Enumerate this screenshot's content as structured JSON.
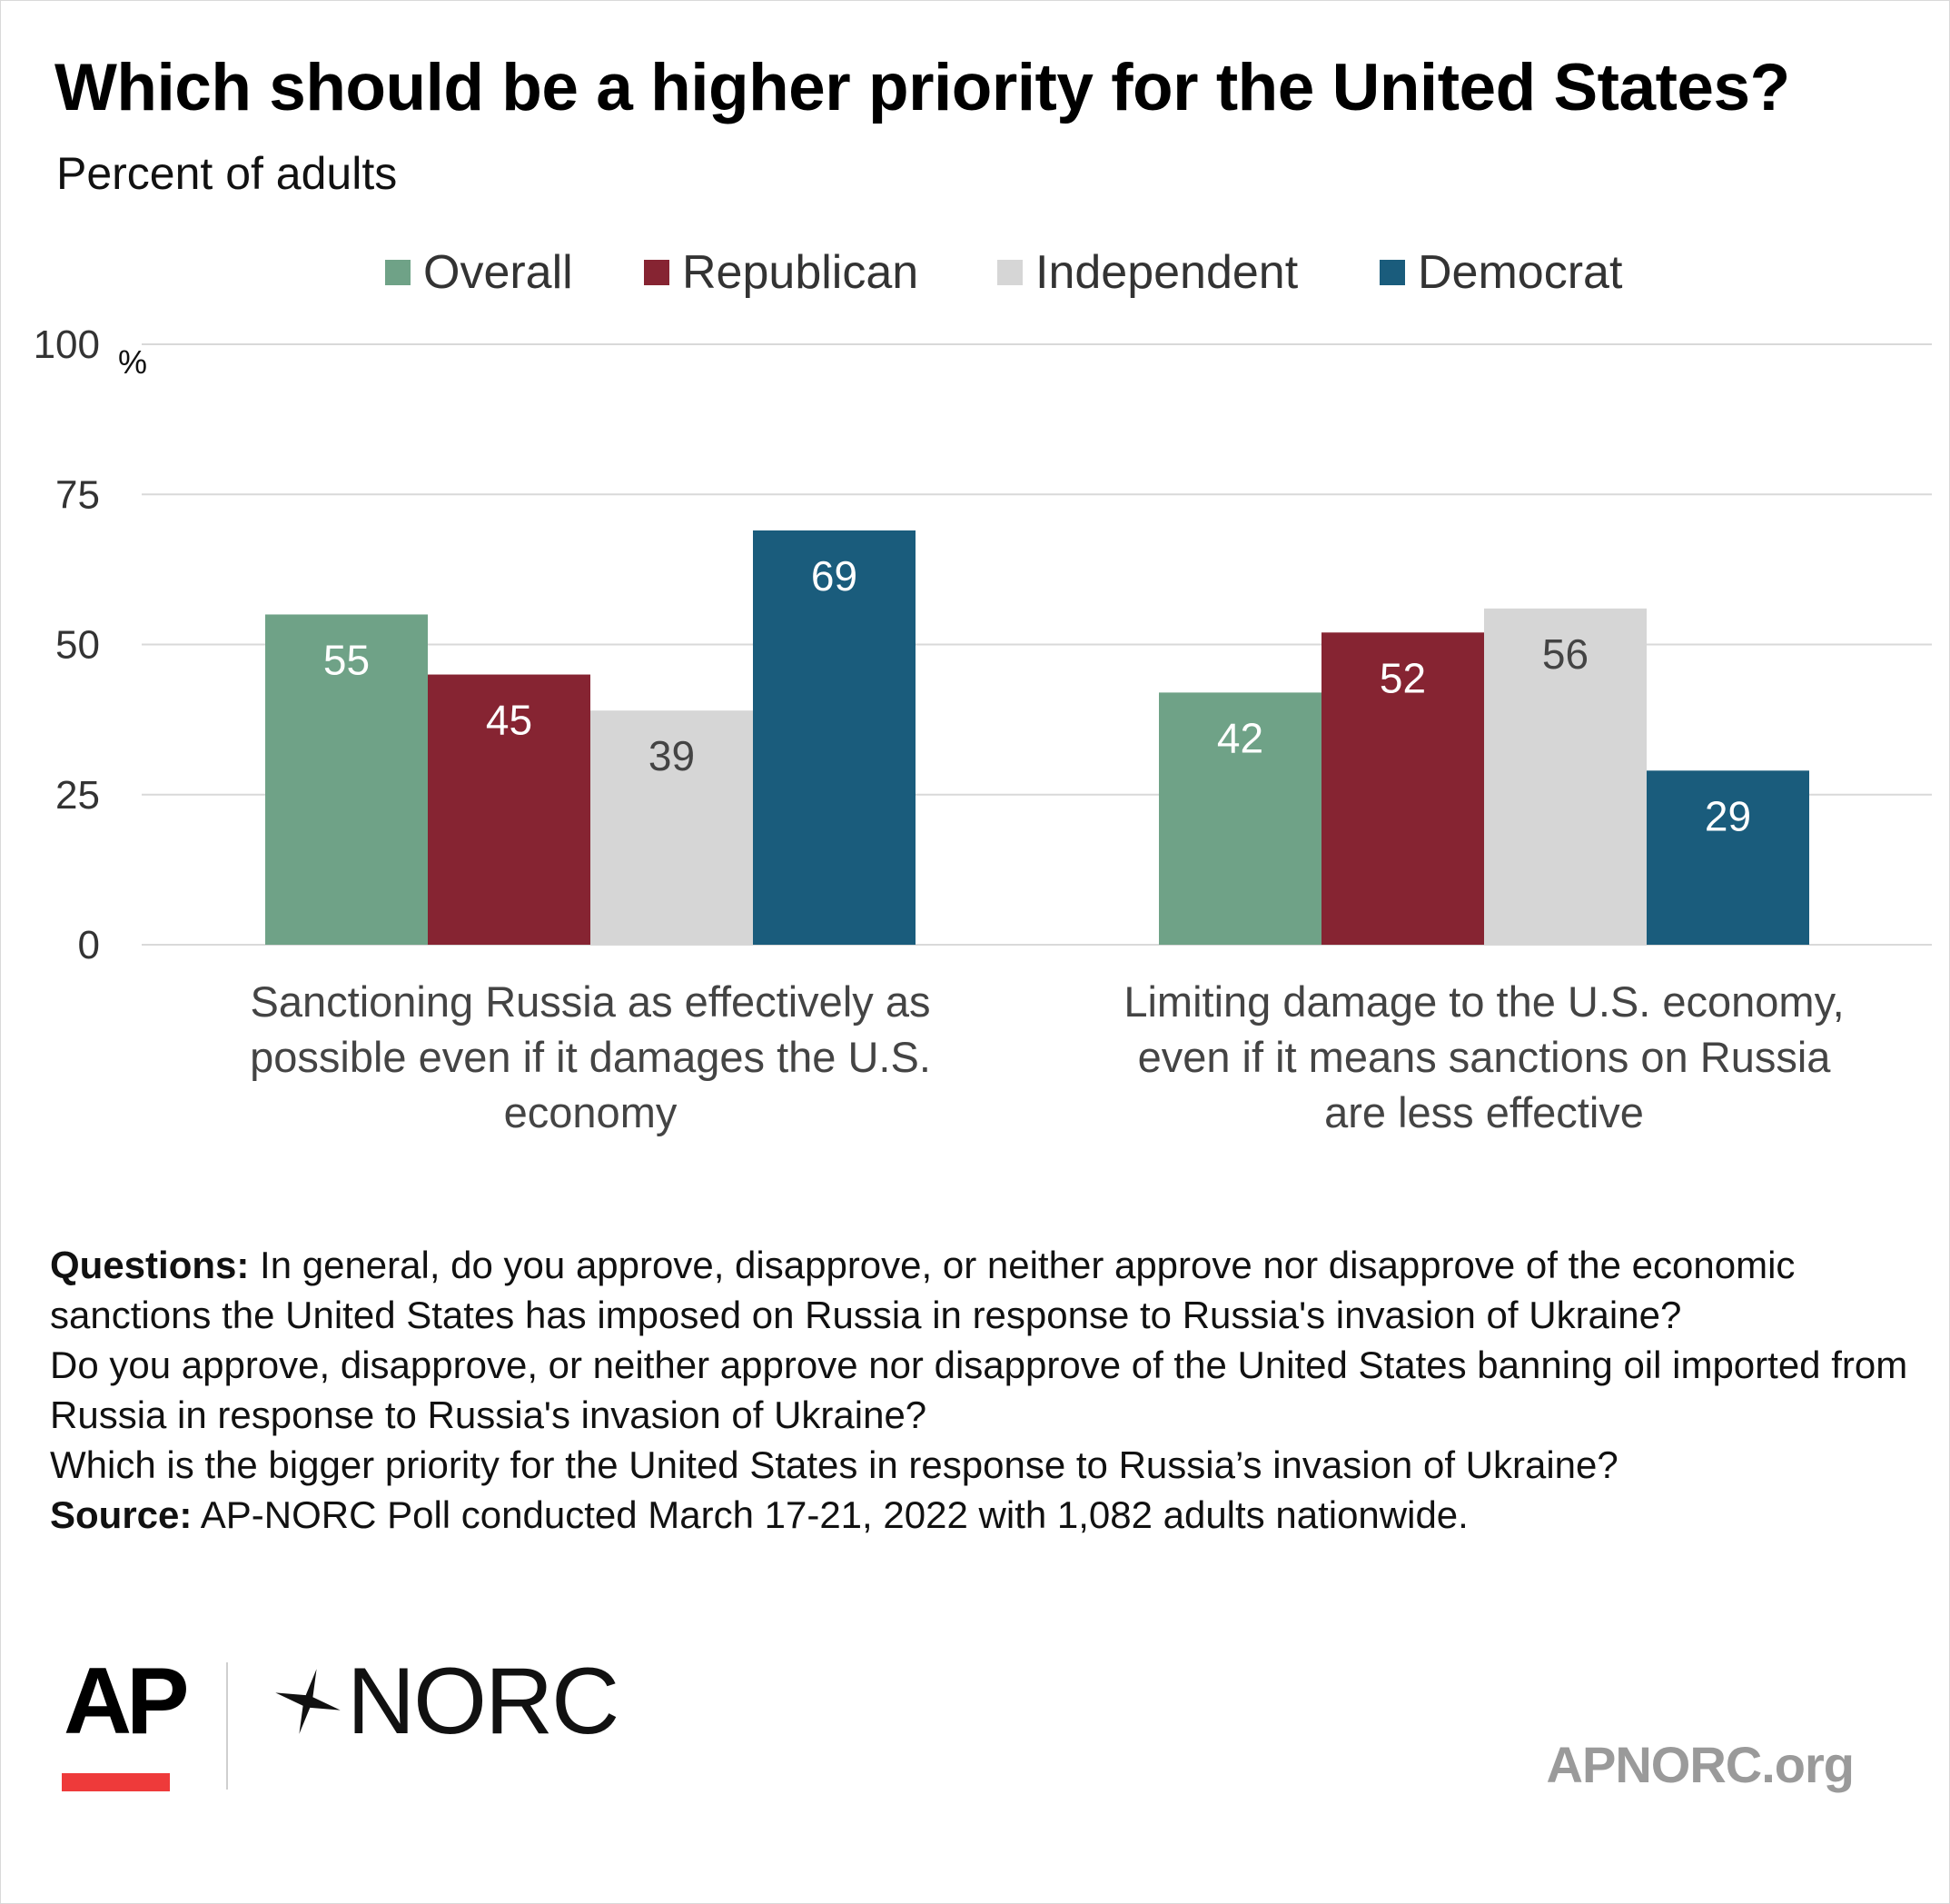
{
  "header": {
    "title": "Which should be a higher priority for the United States?",
    "subtitle": "Percent of adults"
  },
  "chart_data": {
    "type": "bar",
    "title": "Which should be a higher priority for the United States?",
    "subtitle": "Percent of adults",
    "xlabel": "",
    "ylabel": "%",
    "ylim": [
      0,
      100
    ],
    "yticks": [
      "0",
      "25",
      "50",
      "75",
      "100"
    ],
    "grid": true,
    "legend_position": "top-center",
    "categories": [
      "Sanctioning Russia as effectively as possible even if it damages the U.S. economy",
      "Limiting damage to the U.S. economy, even if it means sanctions on Russia are less effective"
    ],
    "series": [
      {
        "name": "Overall",
        "color": "#6fa287",
        "label_color": "#ffffff",
        "values": [
          55,
          42
        ]
      },
      {
        "name": "Republican",
        "color": "#862432",
        "label_color": "#ffffff",
        "values": [
          45,
          52
        ]
      },
      {
        "name": "Independent",
        "color": "#d6d6d6",
        "label_color": "#444444",
        "values": [
          39,
          56
        ]
      },
      {
        "name": "Democrat",
        "color": "#1a5c7c",
        "label_color": "#ffffff",
        "values": [
          69,
          29
        ]
      }
    ]
  },
  "notes": {
    "questions_label": "Questions:",
    "questions_line1": " In general, do you approve, disapprove, or neither approve nor disapprove of the economic sanctions the United States has imposed on Russia in response to Russia's invasion of Ukraine?",
    "questions_line2": "Do you approve, disapprove, or neither approve nor disapprove of the United States banning oil imported from Russia in response to Russia's invasion of Ukraine?",
    "questions_line3": "Which is the bigger priority for the United States in response to Russia’s invasion of Ukraine?",
    "source_label": "Source:",
    "source_text": " AP-NORC Poll conducted March 17-21, 2022 with 1,082 adults nationwide."
  },
  "footer": {
    "ap_logo_text": "AP",
    "norc_logo_text": "NORC",
    "site_url": "APNORC.org"
  },
  "colors": {
    "ap_red": "#ee3a3a",
    "gridline": "#d9d9d9",
    "url_gray": "#9a9a9a"
  }
}
